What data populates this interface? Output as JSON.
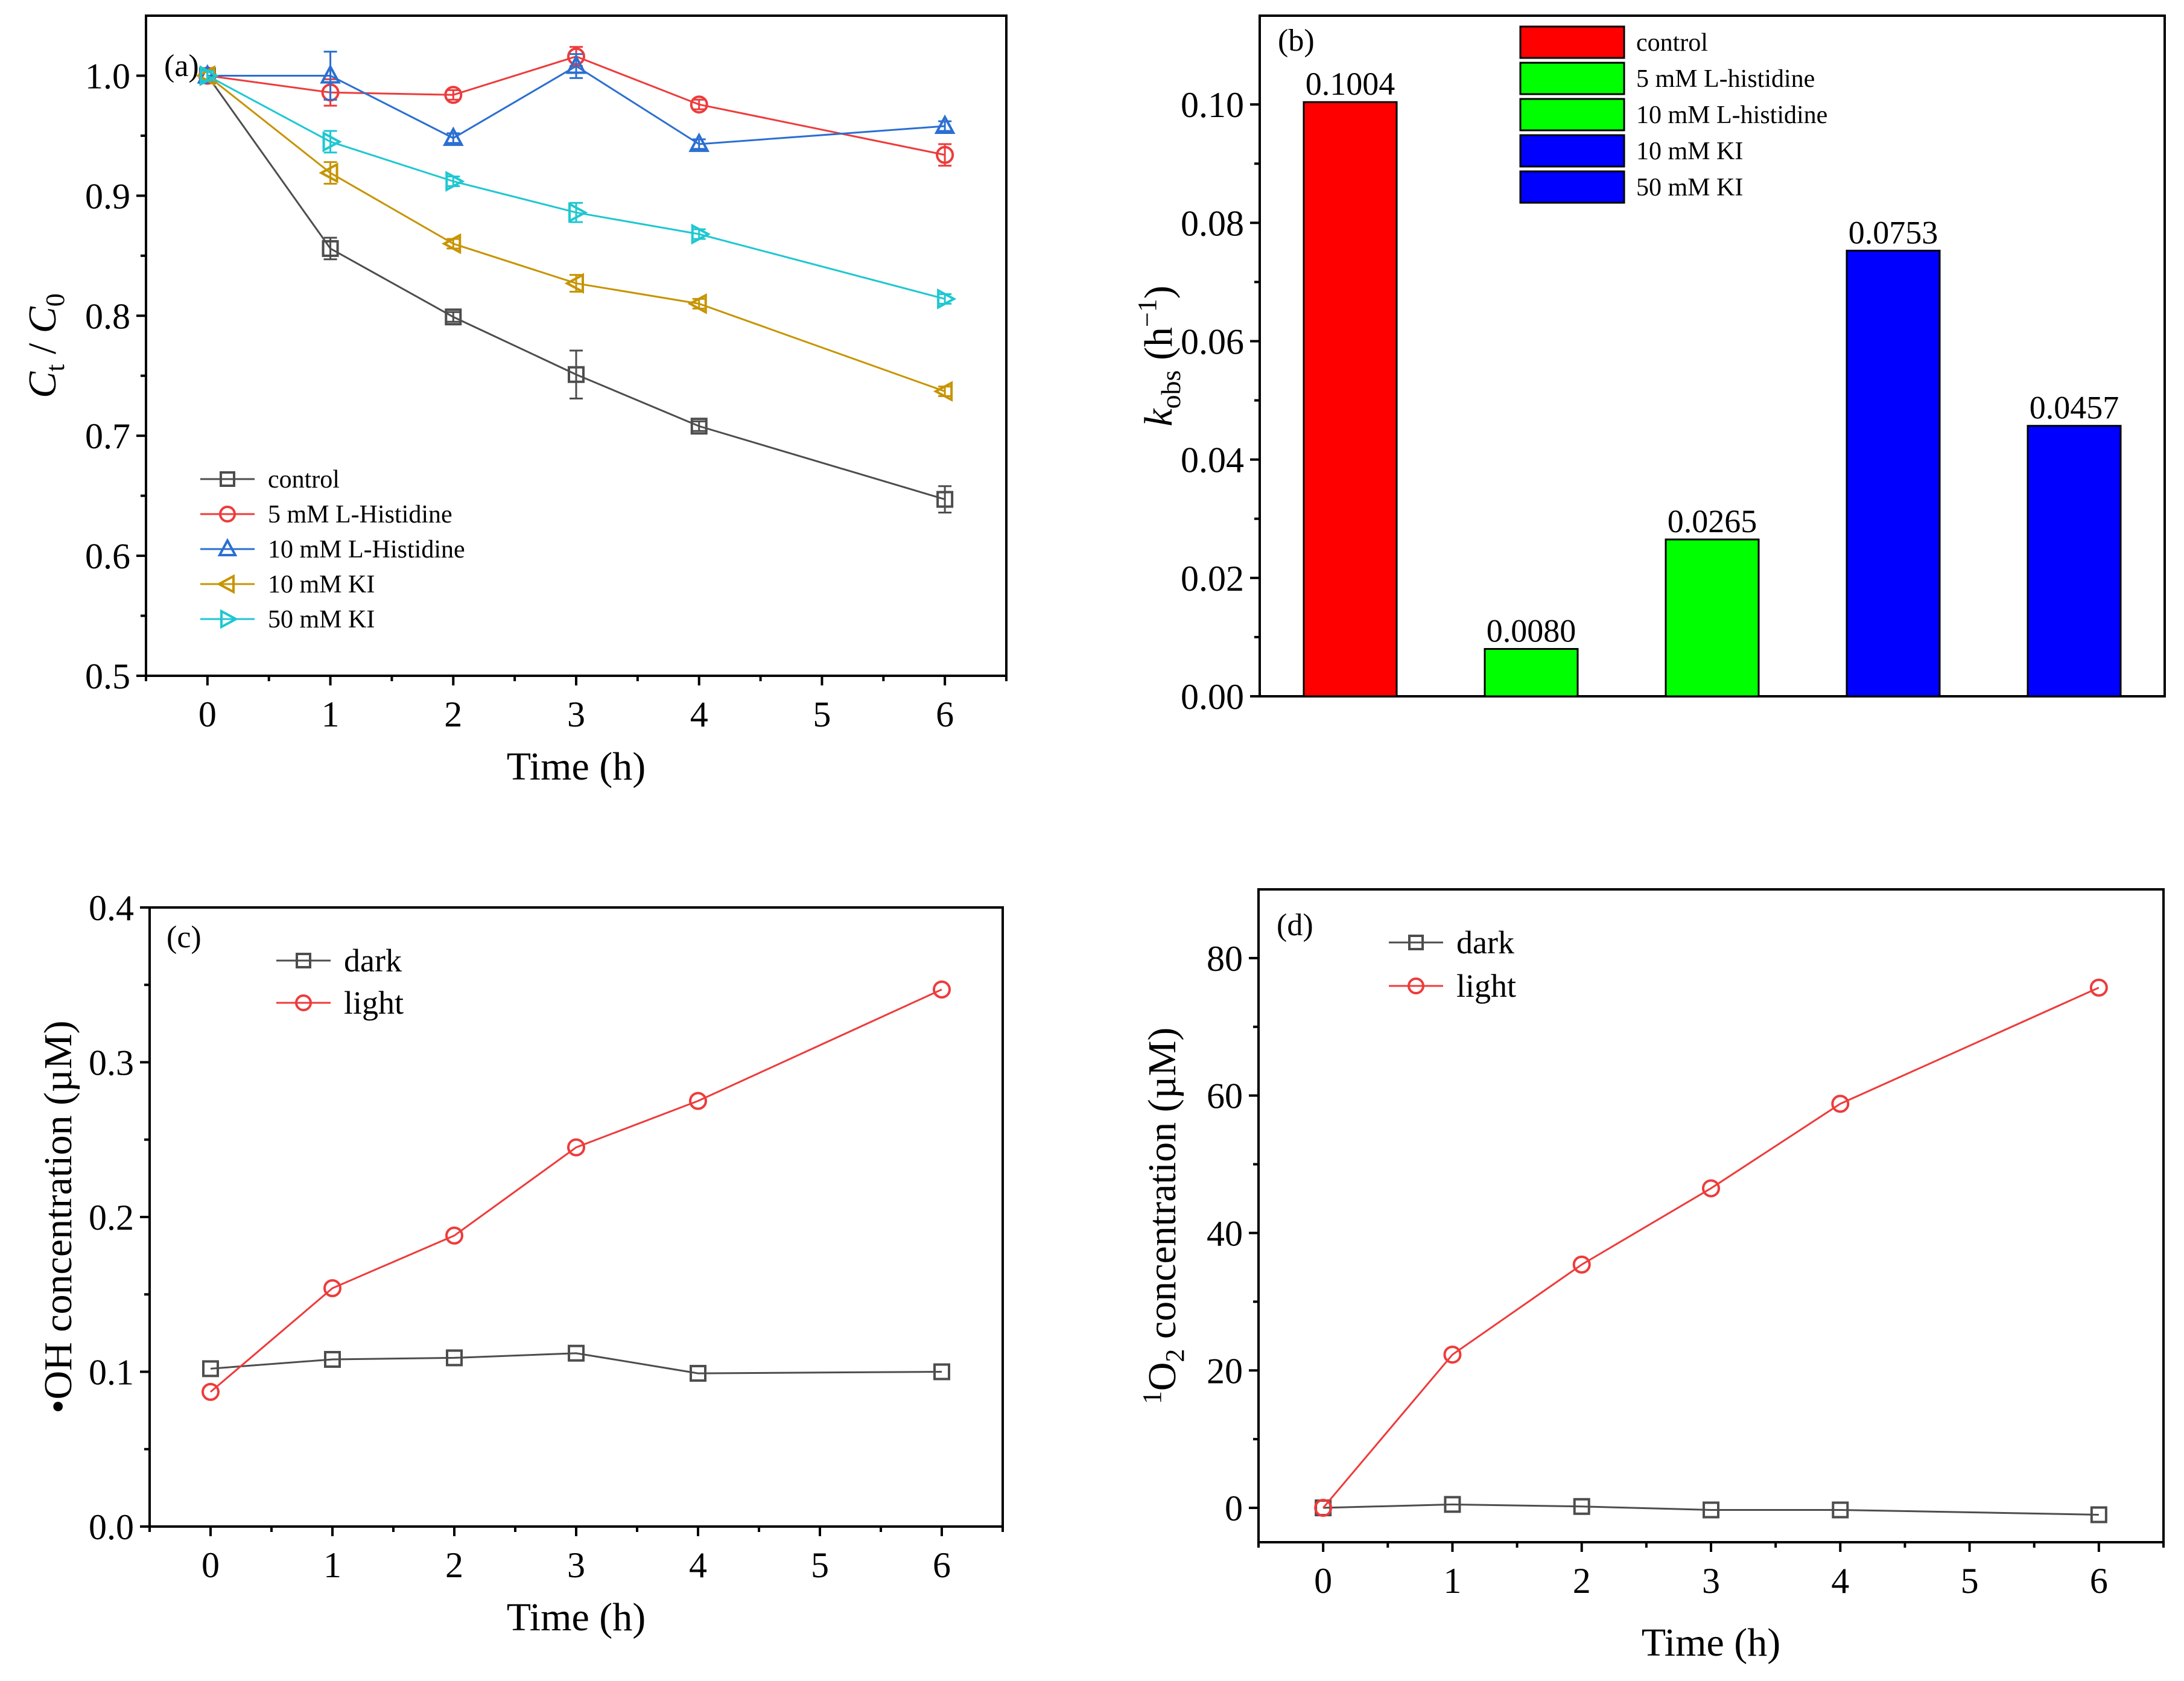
{
  "chart_data": [
    {
      "id": "a",
      "type": "line",
      "panel_label": "(a)",
      "xlabel": "Time (h)",
      "ylabel": "Ct / C0",
      "ylabel_main": "C",
      "ylabel_sub1": "t",
      "ylabel_sep": " / ",
      "ylabel_sub2": "0",
      "xlim": [
        -0.5,
        6.5
      ],
      "ylim": [
        0.5,
        1.05
      ],
      "xticks": [
        "0",
        "1",
        "2",
        "3",
        "4",
        "5",
        "6"
      ],
      "yticks": [
        "0.5",
        "0.6",
        "0.7",
        "0.8",
        "0.9",
        "1.0"
      ],
      "legend_position": "bottom-left",
      "series": [
        {
          "name": "control",
          "marker": "square",
          "color": "#4d4d4d",
          "x": [
            0,
            1,
            2,
            3,
            4,
            6
          ],
          "y": [
            1.0,
            0.856,
            0.799,
            0.751,
            0.708,
            0.647
          ],
          "err": [
            0.004,
            0.009,
            0.004,
            0.02,
            0.004,
            0.011
          ]
        },
        {
          "name": "5 mM L-Histidine",
          "marker": "circle",
          "color": "#ee3b3b",
          "x": [
            0,
            1,
            2,
            3,
            4,
            6
          ],
          "y": [
            1.0,
            0.986,
            0.984,
            1.016,
            0.976,
            0.934
          ],
          "err": [
            0.004,
            0.011,
            0.004,
            0.008,
            0.004,
            0.009
          ]
        },
        {
          "name": "10 mM L-Histidine",
          "marker": "triangle-up",
          "color": "#2a6fd1",
          "x": [
            0,
            1,
            2,
            3,
            4,
            6
          ],
          "y": [
            1.0,
            1.0,
            0.948,
            1.008,
            0.943,
            0.958
          ],
          "err": [
            0.004,
            0.02,
            0.004,
            0.01,
            0.004,
            0.004
          ]
        },
        {
          "name": "10 mM KI",
          "marker": "triangle-left",
          "color": "#c79400",
          "x": [
            0,
            1,
            2,
            3,
            4,
            6
          ],
          "y": [
            1.0,
            0.919,
            0.86,
            0.827,
            0.81,
            0.737
          ],
          "err": [
            0.004,
            0.009,
            0.004,
            0.007,
            0.004,
            0.004
          ]
        },
        {
          "name": "50 mM KI",
          "marker": "triangle-right",
          "color": "#1ec7d1",
          "x": [
            0,
            1,
            2,
            3,
            4,
            6
          ],
          "y": [
            1.0,
            0.945,
            0.912,
            0.886,
            0.868,
            0.814
          ],
          "err": [
            0.004,
            0.009,
            0.004,
            0.008,
            0.004,
            0.004
          ]
        }
      ]
    },
    {
      "id": "b",
      "type": "bar",
      "panel_label": "(b)",
      "ylabel": "kobs (h−1)",
      "ylabel_main": "k",
      "ylabel_sub": "obs",
      "ylabel_unit_open": " (h",
      "ylabel_sup": "−1",
      "ylabel_unit_close": ")",
      "ylim": [
        0,
        0.115
      ],
      "yticks": [
        "0.00",
        "0.02",
        "0.04",
        "0.06",
        "0.08",
        "0.10"
      ],
      "categories": [
        "control",
        "5 mM L-histidine",
        "10 mM L-histidine",
        "10 mM KI",
        "50 mM KI"
      ],
      "values": [
        0.1004,
        0.008,
        0.0265,
        0.0753,
        0.0457
      ],
      "value_labels": [
        "0.1004",
        "0.0080",
        "0.0265",
        "0.0753",
        "0.0457"
      ],
      "colors": [
        "#ff0000",
        "#00ff00",
        "#00ff00",
        "#0000ff",
        "#0000ff"
      ],
      "legend_position": "top-right"
    },
    {
      "id": "c",
      "type": "line",
      "panel_label": "(c)",
      "xlabel": "Time (h)",
      "ylabel": "•OH concentration (µM)",
      "xlim": [
        -0.5,
        6.5
      ],
      "ylim": [
        0,
        0.4
      ],
      "xticks": [
        "0",
        "1",
        "2",
        "3",
        "4",
        "5",
        "6"
      ],
      "yticks": [
        "0.0",
        "0.1",
        "0.2",
        "0.3",
        "0.4"
      ],
      "legend_position": "top-left",
      "series": [
        {
          "name": "dark",
          "marker": "square",
          "color": "#4d4d4d",
          "x": [
            0,
            1,
            2,
            3,
            4,
            6
          ],
          "y": [
            0.102,
            0.108,
            0.109,
            0.112,
            0.099,
            0.1
          ]
        },
        {
          "name": "light",
          "marker": "circle",
          "color": "#ee3b3b",
          "x": [
            0,
            1,
            2,
            3,
            4,
            6
          ],
          "y": [
            0.087,
            0.154,
            0.188,
            0.245,
            0.275,
            0.347
          ]
        }
      ]
    },
    {
      "id": "d",
      "type": "line",
      "panel_label": "(d)",
      "xlabel": "Time (h)",
      "ylabel": "1O2 concentration (µM)",
      "ylabel_sup": "1",
      "ylabel_main": "O",
      "ylabel_sub": "2",
      "ylabel_rest": " concentration (µM)",
      "xlim": [
        -0.5,
        6.5
      ],
      "ylim": [
        -5,
        90
      ],
      "xticks": [
        "0",
        "1",
        "2",
        "3",
        "4",
        "5",
        "6"
      ],
      "yticks": [
        "0",
        "20",
        "40",
        "60",
        "80"
      ],
      "legend_position": "top-left",
      "series": [
        {
          "name": "dark",
          "marker": "square",
          "color": "#4d4d4d",
          "x": [
            0,
            1,
            2,
            3,
            4,
            6
          ],
          "y": [
            0,
            0.5,
            0.2,
            -0.3,
            -0.3,
            -1
          ]
        },
        {
          "name": "light",
          "marker": "circle",
          "color": "#ee3b3b",
          "x": [
            0,
            1,
            2,
            3,
            4,
            6
          ],
          "y": [
            0,
            22.3,
            35.4,
            46.5,
            58.8,
            75.7
          ]
        }
      ]
    }
  ]
}
